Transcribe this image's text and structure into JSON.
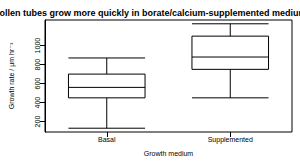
{
  "chart_data": {
    "type": "boxplot",
    "title": "Pollen tubes grow more quickly in borate/calcium-supplemented medium",
    "x_label": "Growth medium",
    "y_label": "Growth rate / µm hr⁻¹",
    "categories": [
      "Basal",
      "Supplemented"
    ],
    "values": [
      [
        130,
        450,
        560,
        700,
        870
      ],
      [
        450,
        750,
        880,
        1100,
        1230
      ]
    ],
    "color": "#000000",
    "ylim": [
      90,
      1270
    ],
    "yticks": [
      200,
      400,
      600,
      800,
      1000
    ],
    "grid": false
  }
}
